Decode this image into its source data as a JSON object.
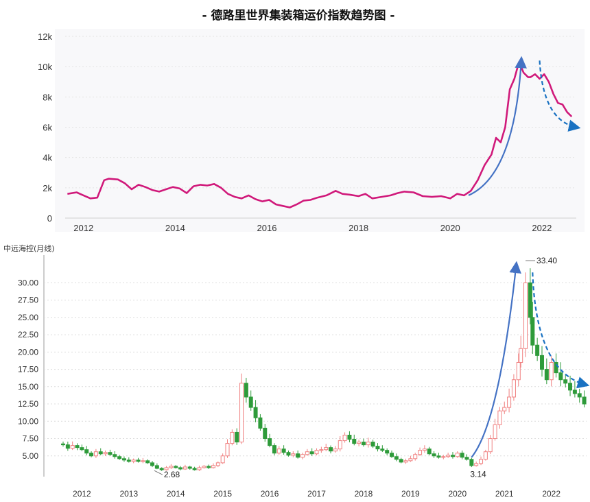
{
  "chart_data": [
    {
      "type": "line",
      "title": "- 德路里世界集装箱运价指数趋势图 -",
      "xlabel": "",
      "ylabel": "",
      "xlim": [
        2011.6,
        2022.75
      ],
      "ylim": [
        0,
        12000
      ],
      "x_ticks": [
        2012,
        2014,
        2016,
        2018,
        2020,
        2022
      ],
      "x_tick_labels": [
        "2012",
        "2014",
        "2016",
        "2018",
        "2020",
        "2022"
      ],
      "y_ticks": [
        0,
        2000,
        4000,
        6000,
        8000,
        10000,
        12000
      ],
      "y_tick_labels": [
        "0",
        "2k",
        "4k",
        "6k",
        "8k",
        "10k",
        "12k"
      ],
      "grid": true,
      "line_color": "#d0197a",
      "series": [
        {
          "x": [
            2011.65,
            2011.85,
            2012.0,
            2012.15,
            2012.3,
            2012.45,
            2012.55,
            2012.75,
            2012.9,
            2013.05,
            2013.2,
            2013.35,
            2013.5,
            2013.65,
            2013.8,
            2013.95,
            2014.1,
            2014.25,
            2014.4,
            2014.55,
            2014.7,
            2014.85,
            2015.0,
            2015.15,
            2015.3,
            2015.45,
            2015.6,
            2015.75,
            2015.9,
            2016.05,
            2016.2,
            2016.35,
            2016.5,
            2016.65,
            2016.8,
            2016.95,
            2017.1,
            2017.3,
            2017.5,
            2017.65,
            2017.8,
            2018.0,
            2018.15,
            2018.3,
            2018.5,
            2018.7,
            2018.85,
            2019.0,
            2019.2,
            2019.4,
            2019.6,
            2019.8,
            2020.0,
            2020.15,
            2020.3,
            2020.45,
            2020.6,
            2020.75,
            2020.9,
            2021.0,
            2021.1,
            2021.2,
            2021.3,
            2021.4,
            2021.5,
            2021.6,
            2021.7,
            2021.75,
            2021.85,
            2021.95,
            2022.05,
            2022.15,
            2022.25,
            2022.35,
            2022.45,
            2022.55,
            2022.65
          ],
          "y": [
            1600,
            1700,
            1500,
            1300,
            1350,
            2500,
            2600,
            2550,
            2300,
            1900,
            2200,
            2050,
            1850,
            1750,
            1900,
            2050,
            1950,
            1650,
            2100,
            2200,
            2150,
            2250,
            2000,
            1600,
            1400,
            1300,
            1500,
            1250,
            1100,
            1200,
            900,
            800,
            700,
            900,
            1150,
            1200,
            1350,
            1500,
            1800,
            1600,
            1550,
            1450,
            1600,
            1300,
            1400,
            1500,
            1650,
            1750,
            1700,
            1450,
            1400,
            1450,
            1300,
            1600,
            1500,
            1800,
            2500,
            3500,
            4200,
            5300,
            5000,
            6000,
            8500,
            9200,
            10300,
            9600,
            9300,
            9300,
            9500,
            9200,
            9500,
            9000,
            8200,
            7600,
            7500,
            7000,
            6700
          ]
        }
      ],
      "trend_arrows": [
        {
          "style": "solid",
          "color": "#4472c4",
          "from": [
            2020.4,
            1500
          ],
          "to": [
            2021.55,
            10400
          ]
        },
        {
          "style": "dashed",
          "color": "#1a72c2",
          "from": [
            2021.95,
            10400
          ],
          "to": [
            2022.75,
            6000
          ]
        }
      ]
    },
    {
      "type": "candlestick",
      "title": "中远海控(月线)",
      "xlabel": "",
      "ylabel": "",
      "xlim": [
        2011.6,
        2022.75
      ],
      "ylim": [
        2.5,
        34.0
      ],
      "x_ticks": [
        2012,
        2013,
        2014,
        2015,
        2016,
        2017,
        2018,
        2019,
        2020,
        2021,
        2022
      ],
      "x_tick_labels": [
        "2012",
        "2013",
        "2014",
        "2015",
        "2016",
        "2017",
        "2018",
        "2019",
        "2020",
        "2021",
        "2022"
      ],
      "y_ticks": [
        5,
        7.5,
        10,
        12.5,
        15,
        17.5,
        20,
        22.5,
        25,
        27.5,
        30
      ],
      "y_tick_labels": [
        "5.00",
        "7.50",
        "10.00",
        "12.50",
        "15.00",
        "17.50",
        "20.00",
        "22.50",
        "25.00",
        "27.50",
        "30.00"
      ],
      "grid": true,
      "up_color": "#f08080",
      "down_color": "#2e9b3a",
      "annotations": [
        {
          "text": "2.68",
          "x": 2013.6,
          "y": 2.68
        },
        {
          "text": "3.14",
          "x": 2020.3,
          "y": 3.14
        },
        {
          "text": "33.40",
          "x": 2021.45,
          "y": 33.4
        }
      ],
      "closes": [
        [
          2011.6,
          6.6
        ],
        [
          2011.7,
          6.1
        ],
        [
          2011.8,
          6.5
        ],
        [
          2011.9,
          6.2
        ],
        [
          2012.0,
          5.9
        ],
        [
          2012.1,
          5.4
        ],
        [
          2012.2,
          5.0
        ],
        [
          2012.3,
          5.6
        ],
        [
          2012.4,
          5.3
        ],
        [
          2012.5,
          5.5
        ],
        [
          2012.6,
          5.2
        ],
        [
          2012.7,
          4.9
        ],
        [
          2012.8,
          4.6
        ],
        [
          2012.9,
          4.4
        ],
        [
          2013.0,
          4.2
        ],
        [
          2013.1,
          4.4
        ],
        [
          2013.2,
          4.2
        ],
        [
          2013.3,
          4.3
        ],
        [
          2013.4,
          4.0
        ],
        [
          2013.5,
          3.6
        ],
        [
          2013.6,
          3.2
        ],
        [
          2013.7,
          3.0
        ],
        [
          2013.8,
          3.3
        ],
        [
          2013.9,
          3.5
        ],
        [
          2014.0,
          3.3
        ],
        [
          2014.1,
          3.1
        ],
        [
          2014.2,
          3.4
        ],
        [
          2014.3,
          3.2
        ],
        [
          2014.4,
          3.0
        ],
        [
          2014.5,
          3.3
        ],
        [
          2014.6,
          3.5
        ],
        [
          2014.7,
          3.3
        ],
        [
          2014.8,
          3.6
        ],
        [
          2014.9,
          4.0
        ],
        [
          2015.0,
          5.0
        ],
        [
          2015.1,
          6.8
        ],
        [
          2015.2,
          8.4
        ],
        [
          2015.3,
          7.0
        ],
        [
          2015.4,
          15.5
        ],
        [
          2015.5,
          13.5
        ],
        [
          2015.6,
          12.0
        ],
        [
          2015.7,
          10.5
        ],
        [
          2015.8,
          9.0
        ],
        [
          2015.9,
          7.5
        ],
        [
          2016.0,
          6.5
        ],
        [
          2016.1,
          5.4
        ],
        [
          2016.2,
          6.0
        ],
        [
          2016.3,
          5.5
        ],
        [
          2016.4,
          5.1
        ],
        [
          2016.5,
          5.3
        ],
        [
          2016.6,
          4.8
        ],
        [
          2016.7,
          5.2
        ],
        [
          2016.8,
          5.6
        ],
        [
          2016.9,
          5.3
        ],
        [
          2017.0,
          5.8
        ],
        [
          2017.1,
          5.9
        ],
        [
          2017.2,
          6.2
        ],
        [
          2017.3,
          5.7
        ],
        [
          2017.4,
          6.0
        ],
        [
          2017.5,
          7.2
        ],
        [
          2017.6,
          8.0
        ],
        [
          2017.7,
          7.4
        ],
        [
          2017.8,
          6.8
        ],
        [
          2017.9,
          7.0
        ],
        [
          2018.0,
          6.6
        ],
        [
          2018.1,
          7.0
        ],
        [
          2018.2,
          6.4
        ],
        [
          2018.3,
          6.0
        ],
        [
          2018.4,
          5.8
        ],
        [
          2018.5,
          5.4
        ],
        [
          2018.6,
          4.9
        ],
        [
          2018.7,
          4.5
        ],
        [
          2018.8,
          4.1
        ],
        [
          2018.9,
          4.3
        ],
        [
          2019.0,
          4.6
        ],
        [
          2019.1,
          5.2
        ],
        [
          2019.2,
          5.8
        ],
        [
          2019.3,
          6.0
        ],
        [
          2019.4,
          5.3
        ],
        [
          2019.5,
          5.0
        ],
        [
          2019.6,
          4.8
        ],
        [
          2019.7,
          4.9
        ],
        [
          2019.8,
          5.1
        ],
        [
          2019.9,
          4.9
        ],
        [
          2020.0,
          5.4
        ],
        [
          2020.1,
          4.8
        ],
        [
          2020.2,
          4.5
        ],
        [
          2020.3,
          3.6
        ],
        [
          2020.4,
          3.9
        ],
        [
          2020.5,
          4.5
        ],
        [
          2020.6,
          5.6
        ],
        [
          2020.7,
          7.5
        ],
        [
          2020.8,
          9.5
        ],
        [
          2020.9,
          11.5
        ],
        [
          2021.0,
          12.0
        ],
        [
          2021.1,
          13.5
        ],
        [
          2021.2,
          16.0
        ],
        [
          2021.3,
          18.5
        ],
        [
          2021.35,
          20.5
        ],
        [
          2021.45,
          30.0
        ],
        [
          2021.55,
          25.0
        ],
        [
          2021.6,
          21.0
        ],
        [
          2021.7,
          19.5
        ],
        [
          2021.8,
          17.5
        ],
        [
          2021.9,
          16.0
        ],
        [
          2022.0,
          18.5
        ],
        [
          2022.1,
          17.0
        ],
        [
          2022.2,
          16.0
        ],
        [
          2022.3,
          15.5
        ],
        [
          2022.4,
          14.5
        ],
        [
          2022.5,
          14.0
        ],
        [
          2022.6,
          13.5
        ],
        [
          2022.7,
          12.5
        ]
      ],
      "trend_arrows": [
        {
          "style": "solid",
          "color": "#4472c4",
          "from": [
            2020.3,
            4.8
          ],
          "to": [
            2021.25,
            32.5
          ]
        },
        {
          "style": "dashed",
          "color": "#1a72c2",
          "from": [
            2021.6,
            31.5
          ],
          "to": [
            2022.72,
            15.3
          ]
        }
      ]
    }
  ]
}
